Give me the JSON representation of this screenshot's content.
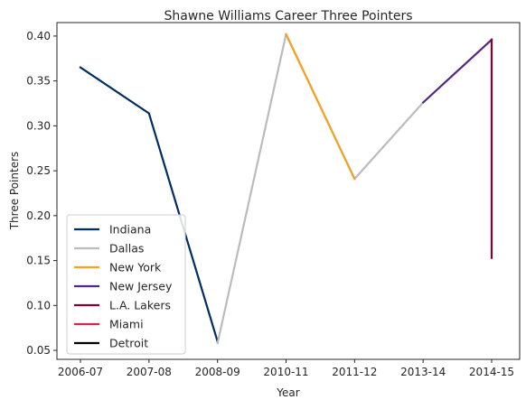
{
  "chart_data": {
    "type": "line",
    "title": "Shawne Williams Career Three Pointers",
    "xlabel": "Year",
    "ylabel": "Three Pointers",
    "categories": [
      "2006-07",
      "2007-08",
      "2008-09",
      "2010-11",
      "2011-12",
      "2013-14",
      "2014-15"
    ],
    "ylim": [
      0.04,
      0.415
    ],
    "yticks": [
      0.05,
      0.1,
      0.15,
      0.2,
      0.25,
      0.3,
      0.35,
      0.4
    ],
    "ytick_labels": [
      "0.05",
      "0.10",
      "0.15",
      "0.20",
      "0.25",
      "0.30",
      "0.35",
      "0.40"
    ],
    "grid": false,
    "legend_position": "lower-left",
    "series": [
      {
        "name": "Indiana",
        "color": "#002d62",
        "points": [
          [
            "2006-07",
            0.365
          ],
          [
            "2007-08",
            0.314
          ],
          [
            "2008-09",
            0.06
          ]
        ]
      },
      {
        "name": "Dallas",
        "color": "#bbbbbb",
        "points": [
          [
            "2008-09",
            0.058
          ],
          [
            "2010-11",
            0.402
          ],
          [
            "2011-12",
            0.241
          ],
          [
            "2013-14",
            0.326
          ]
        ]
      },
      {
        "name": "New York",
        "color": "#f5a01e",
        "points": [
          [
            "2010-11",
            0.402
          ],
          [
            "2011-12",
            0.241
          ]
        ]
      },
      {
        "name": "New Jersey",
        "color": "#552583",
        "points": [
          [
            "2013-14",
            0.326
          ],
          [
            "2014-15",
            0.396
          ]
        ]
      },
      {
        "name": "L.A. Lakers",
        "color": "#860038",
        "points": [
          [
            "2014-15",
            0.396
          ],
          [
            "2014-15",
            0.153
          ]
        ]
      },
      {
        "name": "Miami",
        "color": "#e0234e",
        "points": []
      },
      {
        "name": "Detroit",
        "color": "#000000",
        "points": []
      }
    ]
  }
}
